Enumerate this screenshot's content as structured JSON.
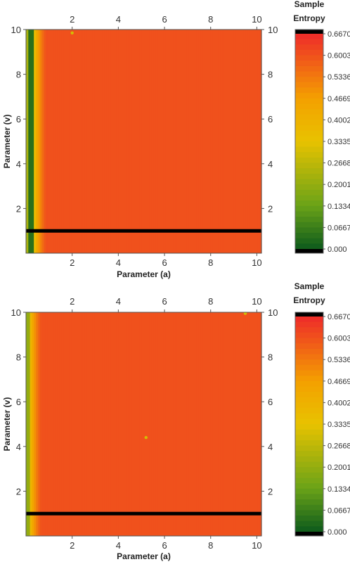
{
  "chart_data": [
    {
      "type": "heatmap",
      "title": "",
      "xlabel": "Parameter (a)",
      "ylabel": "Parameter (v)",
      "xlim": [
        0,
        10.2
      ],
      "ylim": [
        0,
        10
      ],
      "x_ticks": [
        "2",
        "4",
        "6",
        "8",
        "10"
      ],
      "x_tick_values": [
        2,
        4,
        6,
        8,
        10
      ],
      "y_ticks": [
        "2",
        "4",
        "6",
        "8",
        "10"
      ],
      "y_tick_values": [
        2,
        4,
        6,
        8,
        10
      ],
      "colorbar_title": [
        "Sample",
        "Entropy"
      ],
      "colorbar_range": [
        0,
        0.667
      ],
      "colorbar_labels": [
        "0.6670",
        "0.6003",
        "0.5336",
        "0.4669",
        "0.4002",
        "0.3335",
        "0.2668",
        "0.2001",
        "0.1334",
        "0.06670",
        "0.000"
      ],
      "colorbar_values": [
        0.667,
        0.6003,
        0.5336,
        0.4669,
        0.4002,
        0.3335,
        0.2668,
        0.2001,
        0.1334,
        0.0667,
        0.0
      ],
      "colors": {
        "low": "#0d5a1c",
        "mid_low": "#6aa318",
        "mid": "#e8c200",
        "mid_high": "#f4a000",
        "high": "#ee2a2a",
        "cap": "#000000"
      },
      "plateau_value": 0.6003,
      "low_entropy_band": {
        "a_min": 0.1,
        "a_max": 0.35,
        "min_value": 0.04
      },
      "black_line_v": 1.0,
      "spots": [
        {
          "a": 2.0,
          "v": 9.85,
          "value": 0.3
        }
      ]
    },
    {
      "type": "heatmap",
      "title": "",
      "xlabel": "Parameter (a)",
      "ylabel": "Parameter (v)",
      "xlim": [
        0,
        10.2
      ],
      "ylim": [
        0,
        10
      ],
      "x_ticks": [
        "2",
        "4",
        "6",
        "8",
        "10"
      ],
      "x_tick_values": [
        2,
        4,
        6,
        8,
        10
      ],
      "y_ticks": [
        "2",
        "4",
        "6",
        "8",
        "10"
      ],
      "y_tick_values": [
        2,
        4,
        6,
        8,
        10
      ],
      "colorbar_title": [
        "Sample",
        "Entropy"
      ],
      "colorbar_range": [
        0,
        0.667
      ],
      "colorbar_labels": [
        "0.6670",
        "0.6003",
        "0.5336",
        "0.4669",
        "0.4002",
        "0.3335",
        "0.2668",
        "0.2001",
        "0.1334",
        "0.06670",
        "0.000"
      ],
      "colorbar_values": [
        0.667,
        0.6003,
        0.5336,
        0.4669,
        0.4002,
        0.3335,
        0.2668,
        0.2001,
        0.1334,
        0.0667,
        0.0
      ],
      "colors": {
        "low": "#0d5a1c",
        "mid_low": "#6aa318",
        "mid": "#e8c200",
        "mid_high": "#f4a000",
        "high": "#ee2a2a",
        "cap": "#000000"
      },
      "plateau_value": 0.6003,
      "low_entropy_band": {
        "a_min": 0.05,
        "a_max": 0.15,
        "min_value": 0.2
      },
      "black_line_v": 1.0,
      "spots": [
        {
          "a": 5.2,
          "v": 4.4,
          "value": 0.3
        },
        {
          "a": 9.5,
          "v": 9.95,
          "value": 0.3
        }
      ]
    }
  ]
}
